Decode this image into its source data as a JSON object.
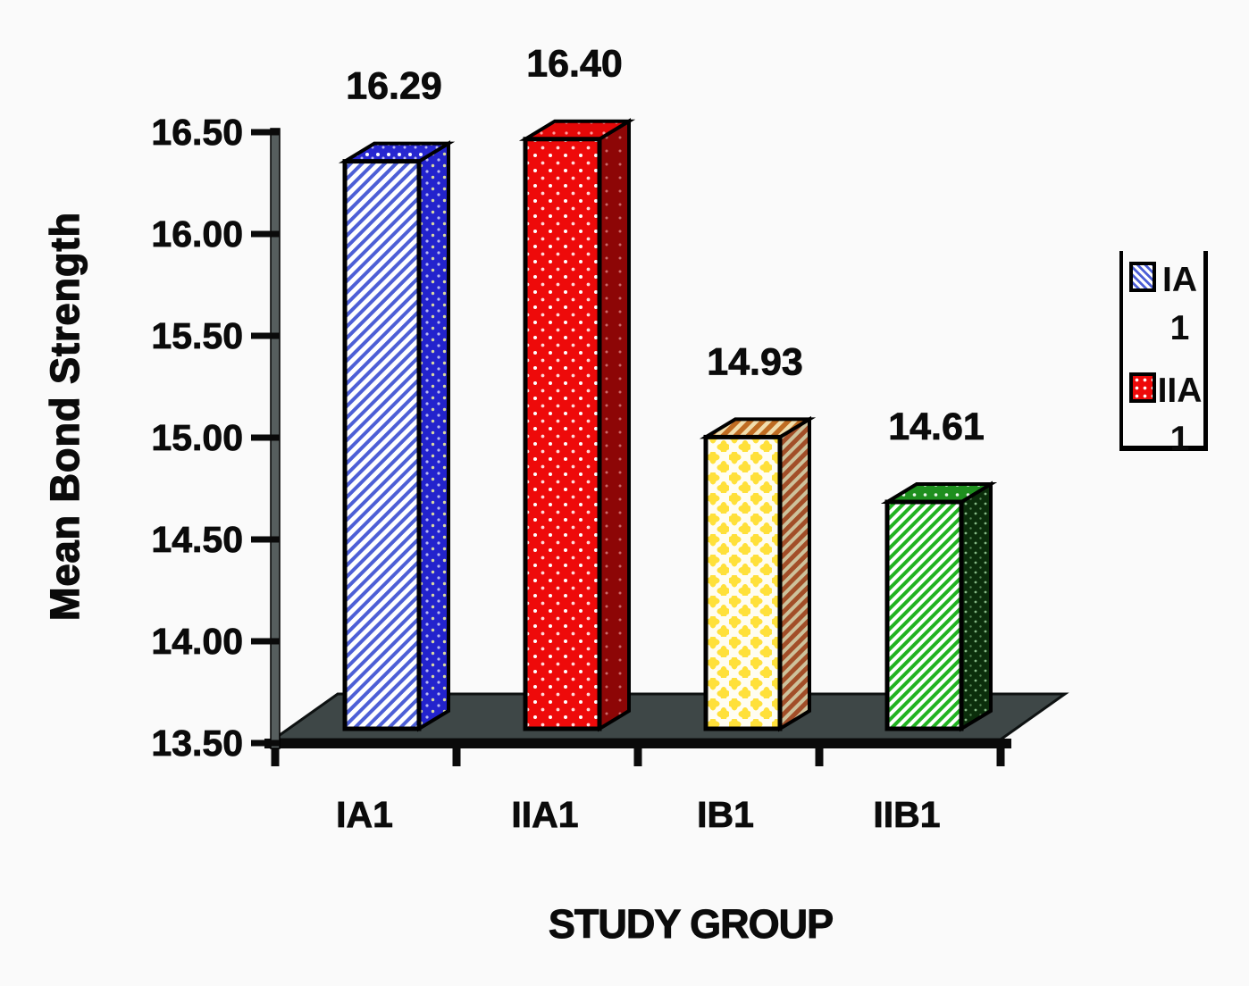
{
  "chart_data": {
    "type": "bar",
    "style": "3d-bars",
    "title": "",
    "xlabel": "STUDY GROUP",
    "ylabel": "Mean Bond Strength",
    "categories": [
      "IA1",
      "IIA1",
      "IB1",
      "IIB1"
    ],
    "values": [
      16.29,
      16.4,
      14.93,
      14.61
    ],
    "data_labels": [
      "16.29",
      "16.40",
      "14.93",
      "14.61"
    ],
    "ylim": [
      13.5,
      16.5
    ],
    "ytick_step": 0.5,
    "yticks": [
      "16.50",
      "16.00",
      "15.50",
      "15.00",
      "14.50",
      "14.00",
      "13.50"
    ],
    "grid": false,
    "legend_position": "right",
    "bars": [
      {
        "category": "IA1",
        "value": 16.29,
        "label": "16.29",
        "front_pattern": "p-blue-hatch",
        "side_pattern": "p-blue-side",
        "top_pattern": "p-blue-top",
        "main_color": "#2a2ad0",
        "pattern_desc": "blue diagonal hatch on white"
      },
      {
        "category": "IIA1",
        "value": 16.4,
        "label": "16.40",
        "front_pattern": "p-red-dots",
        "side_pattern": "p-red-side",
        "top_pattern": "p-red-top",
        "main_color": "#ee0a0a",
        "pattern_desc": "red with white dots"
      },
      {
        "category": "IB1",
        "value": 14.93,
        "label": "14.93",
        "front_pattern": "p-cream-flower",
        "side_pattern": "p-brown-side",
        "top_pattern": "p-brown-top",
        "main_color": "#ffe03a",
        "pattern_desc": "cream with yellow diamonds, brown hatched side"
      },
      {
        "category": "IIB1",
        "value": 14.61,
        "label": "14.61",
        "front_pattern": "p-green-hatch",
        "side_pattern": "p-green-side",
        "top_pattern": "p-green-top",
        "main_color": "#21b321",
        "pattern_desc": "green diagonal hatch on white"
      }
    ],
    "legend": {
      "items": [
        {
          "label": "IA 1",
          "swatch": "blue-diagonal-hatch",
          "color": "#4d5fd6"
        },
        {
          "label": "IIA 1",
          "swatch": "red-white-dots",
          "color": "#ee0a0a"
        }
      ]
    },
    "colors": {
      "floor_top": "#3e4747",
      "axis_line": "#0a0a0a",
      "text": "#0b0b0b",
      "background": "#fafafa"
    }
  }
}
